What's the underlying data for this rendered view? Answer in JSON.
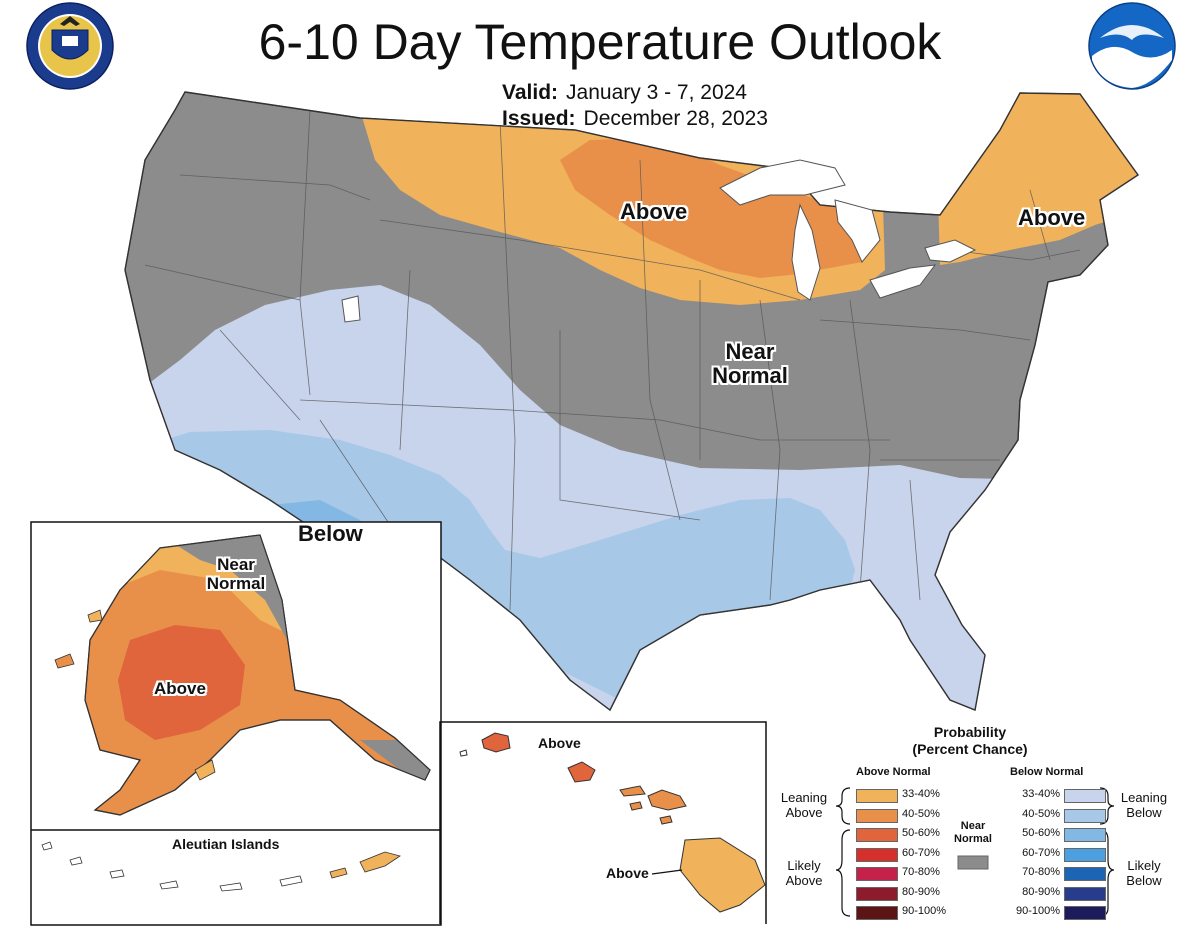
{
  "header": {
    "title": "6-10 Day Temperature Outlook",
    "valid_label": "Valid:",
    "valid_value": "January 3 - 7, 2024",
    "issued_label": "Issued:",
    "issued_value": "December 28, 2023",
    "noaa_logo_text": "NOAA"
  },
  "colors": {
    "near_normal": "#8c8c8c",
    "above_33_40": "#f0b25b",
    "above_40_50": "#e8904a",
    "above_50_60": "#e0643c",
    "above_60_70": "#d4302c",
    "above_70_80": "#c4224a",
    "above_80_90": "#8c1c2c",
    "above_90_100": "#5c1414",
    "below_33_40": "#c8d4ec",
    "below_40_50": "#a8c8e8",
    "below_50_60": "#84b8e4",
    "below_60_70": "#4ca0e0",
    "below_70_80": "#1c64b4",
    "below_80_90": "#283c8c",
    "below_90_100": "#1c1c5c",
    "water": "#ffffff"
  },
  "map_labels": {
    "conus_above_north": "Above",
    "conus_above_northeast": "Above",
    "conus_near": "Near",
    "conus_normal": "Normal",
    "conus_below": "Below",
    "alaska_near": "Near",
    "alaska_normal": "Normal",
    "alaska_above": "Above",
    "aleutian_title": "Aleutian Islands",
    "hawaii_above_kauai": "Above",
    "hawaii_above_big_island": "Above"
  },
  "legend": {
    "title_line1": "Probability",
    "title_line2": "(Percent Chance)",
    "above_header": "Above Normal",
    "below_header": "Below Normal",
    "near_label_line1": "Near",
    "near_label_line2": "Normal",
    "leaning_above": [
      "Leaning",
      "Above"
    ],
    "likely_above": [
      "Likely",
      "Above"
    ],
    "leaning_below": [
      "Leaning",
      "Below"
    ],
    "likely_below": [
      "Likely",
      "Below"
    ],
    "ranges": [
      "33-40%",
      "40-50%",
      "50-60%",
      "60-70%",
      "70-80%",
      "80-90%",
      "90-100%"
    ]
  }
}
